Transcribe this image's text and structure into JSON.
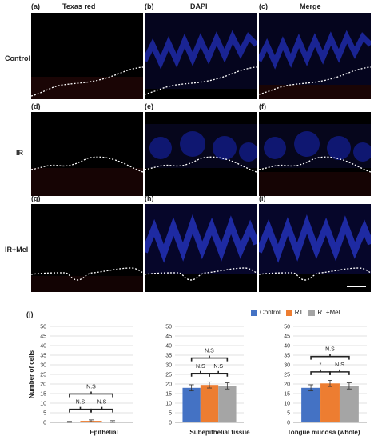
{
  "micrographs": {
    "columns": [
      {
        "letter": "(a)",
        "title": "Texas red"
      },
      {
        "letter": "(b)",
        "title": "DAPI"
      },
      {
        "letter": "(c)",
        "title": "Merge"
      }
    ],
    "rows": [
      {
        "label": "Control",
        "letters": [
          "(a)",
          "(b)",
          "(c)"
        ]
      },
      {
        "label": "IR",
        "letters": [
          "(d)",
          "(e)",
          "(f)"
        ]
      },
      {
        "label": "IR+Mel",
        "letters": [
          "(g)",
          "(h)",
          "(i)"
        ]
      }
    ]
  },
  "panel_j_label": "(j)",
  "legend": [
    {
      "name": "Control",
      "color": "#4472C4"
    },
    {
      "name": "RT",
      "color": "#ED7D31"
    },
    {
      "name": "RT+Mel",
      "color": "#A5A5A5"
    }
  ],
  "chart_data": [
    {
      "type": "bar",
      "title": "Epithelial",
      "ylabel": "Number of cells",
      "ylim": [
        0,
        50
      ],
      "yticks": [
        0,
        5,
        10,
        15,
        20,
        25,
        30,
        35,
        40,
        45,
        50
      ],
      "series": [
        {
          "name": "Control",
          "values": [
            0
          ]
        },
        {
          "name": "RT",
          "values": [
            0.8
          ]
        },
        {
          "name": "RT+Mel",
          "values": [
            0.4
          ]
        }
      ],
      "annotations": [
        "N.S",
        "N.S",
        "N.S"
      ]
    },
    {
      "type": "bar",
      "title": "Subepithelial tissue",
      "ylabel": "",
      "ylim": [
        0,
        50
      ],
      "yticks": [
        0,
        5,
        10,
        15,
        20,
        25,
        30,
        35,
        40,
        45,
        50
      ],
      "series": [
        {
          "name": "Control",
          "values": [
            18
          ]
        },
        {
          "name": "RT",
          "values": [
            19.5
          ]
        },
        {
          "name": "RT+Mel",
          "values": [
            19
          ]
        }
      ],
      "annotations": [
        "N.S",
        "N.S",
        "N.S"
      ]
    },
    {
      "type": "bar",
      "title": "Tongue mucosa (whole)",
      "ylabel": "",
      "ylim": [
        0,
        50
      ],
      "yticks": [
        0,
        5,
        10,
        15,
        20,
        25,
        30,
        35,
        40,
        45,
        50
      ],
      "series": [
        {
          "name": "Control",
          "values": [
            18
          ]
        },
        {
          "name": "RT",
          "values": [
            20.3
          ]
        },
        {
          "name": "RT+Mel",
          "values": [
            19
          ]
        }
      ],
      "annotations": [
        "*",
        "N.S",
        "N.S"
      ]
    }
  ]
}
